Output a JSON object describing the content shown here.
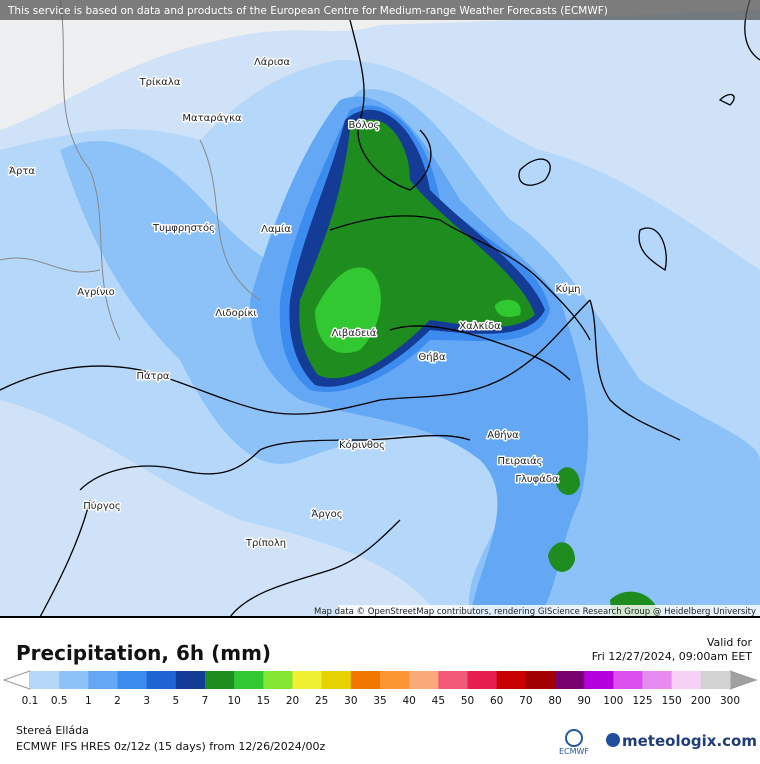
{
  "banner": "This service is based on data and products of the European Centre for Medium-range Weather Forecasts (ECMWF)",
  "places": [
    "Λάρισα",
    "Τρίκαλα",
    "Ματαράγκα",
    "Βόλος",
    "Άρτα",
    "Τυμφρηστός",
    "Λαμία",
    "Αγρίνιο",
    "Λιδορίκι",
    "Λιβαδειά",
    "Χαλκίδα",
    "Κύμη",
    "Θήβα",
    "Πάτρα",
    "Κόρινθος",
    "Αθήνα",
    "Πειραιάς",
    "Γλυφάδα",
    "Πύργος",
    "Άργος",
    "Τρίπολη"
  ],
  "attribution": "Map data © OpenStreetMap contributors, rendering GIScience Research Group @ Heidelberg University",
  "title": "Precipitation, 6h (mm)",
  "valid_label": "Valid for",
  "valid_time": "Fri 12/27/2024, 09:00am EET",
  "legend": {
    "ticks": [
      "0.1",
      "0.5",
      "1",
      "2",
      "3",
      "5",
      "7",
      "10",
      "15",
      "20",
      "25",
      "30",
      "35",
      "40",
      "45",
      "50",
      "60",
      "70",
      "80",
      "90",
      "100",
      "125",
      "150",
      "200",
      "300"
    ],
    "colors": [
      "#b4d7fa",
      "#8cc2f8",
      "#64a8f5",
      "#3c8cf0",
      "#1e64d2",
      "#143c96",
      "#1e8c1e",
      "#32c832",
      "#82e632",
      "#f0f032",
      "#e6d200",
      "#f07800",
      "#fa9632",
      "#faaa78",
      "#f05a78",
      "#e61e50",
      "#c80000",
      "#a00000",
      "#78006e",
      "#b400dc",
      "#dc50f0",
      "#e68cf0",
      "#f5d2f5",
      "#d2d2d2"
    ]
  },
  "region": "Stereá Elláda",
  "model_run": "ECMWF IFS HRES 0z/12z (15 days) from 12/26/2024/00z",
  "logo_ecmwf": "ECMWF",
  "logo_meteologix": "meteologix.com"
}
